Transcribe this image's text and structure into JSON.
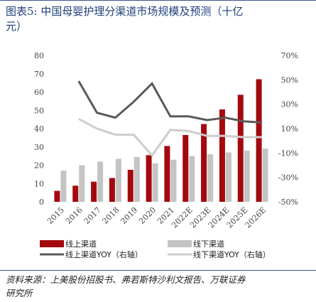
{
  "title": {
    "prefix": "图表5:",
    "line1": "中国母婴护理分渠道市场规模及预测（十亿",
    "line2": "元）"
  },
  "source_note": {
    "line1": "资料来源：上美股份招股书、弗若斯特沙利文报告、万联证券",
    "line2": "研究所"
  },
  "colors": {
    "online_bar": "#a3080e",
    "offline_bar": "#c4c4c4",
    "online_yoy": "#5a5a5a",
    "offline_yoy": "#cdcdcd",
    "rule": "#3a5490",
    "title": "#1f3f7a"
  },
  "chart_data": {
    "type": "bar",
    "categories": [
      "2015",
      "2016",
      "2017",
      "2018",
      "2019",
      "2020",
      "2021",
      "2022E",
      "2023E",
      "2024E",
      "2025E",
      "2026E"
    ],
    "series": [
      {
        "name": "线上渠道",
        "kind": "bar",
        "axis": "left",
        "values": [
          6,
          8.8,
          11,
          13,
          17.5,
          25.5,
          30.5,
          36.5,
          42.5,
          50.5,
          58.5,
          67
        ]
      },
      {
        "name": "线下渠道",
        "kind": "bar",
        "axis": "left",
        "values": [
          17,
          20,
          22,
          23.5,
          24.5,
          21,
          23,
          25,
          26,
          27,
          28,
          29
        ]
      },
      {
        "name": "线上渠道YOY（右轴）",
        "kind": "line",
        "axis": "right",
        "values": [
          null,
          49,
          23,
          19,
          32,
          47,
          20,
          20,
          17,
          19,
          16,
          15
        ]
      },
      {
        "name": "线下渠道YOY（右轴）",
        "kind": "line",
        "axis": "right",
        "values": [
          null,
          18,
          10,
          5,
          5,
          -12,
          9,
          8,
          4,
          4,
          3,
          3
        ]
      }
    ],
    "y_left": {
      "min": 0,
      "max": 80,
      "ticks": [
        "0",
        "10",
        "20",
        "30",
        "40",
        "50",
        "60",
        "70",
        "80"
      ]
    },
    "y_right": {
      "min": -50,
      "max": 70,
      "ticks": [
        "-50%",
        "-30%",
        "-10%",
        "10%",
        "30%",
        "50%",
        "70%"
      ]
    },
    "grid": false,
    "legend_position": "bottom"
  }
}
